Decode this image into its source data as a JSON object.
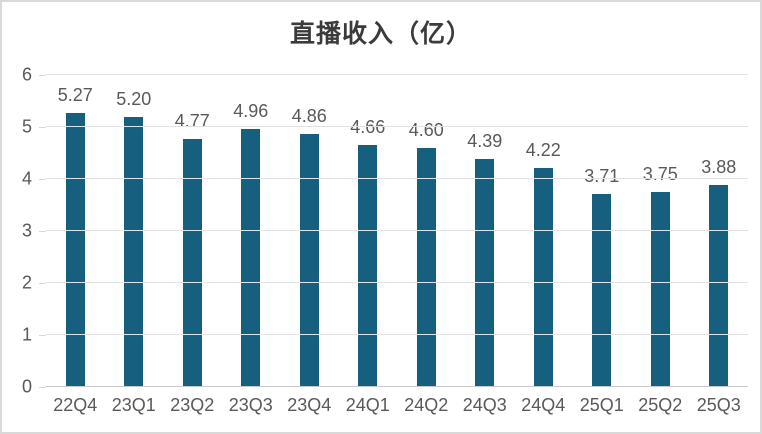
{
  "chart_data": {
    "type": "bar",
    "title": "直播收入（亿）",
    "categories": [
      "22Q4",
      "23Q1",
      "23Q2",
      "23Q3",
      "23Q4",
      "24Q1",
      "24Q2",
      "24Q3",
      "24Q4",
      "25Q1",
      "25Q2",
      "25Q3"
    ],
    "values": [
      5.27,
      5.2,
      4.77,
      4.96,
      4.86,
      4.66,
      4.6,
      4.39,
      4.22,
      3.71,
      3.75,
      3.88
    ],
    "data_labels": [
      "5.27",
      "5.20",
      "4.77",
      "4.96",
      "4.86",
      "4.66",
      "4.60",
      "4.39",
      "4.22",
      "3.71",
      "3.75",
      "3.88"
    ],
    "xlabel": "",
    "ylabel": "",
    "ylim": [
      0,
      6
    ],
    "y_ticks": [
      0,
      1,
      2,
      3,
      4,
      5,
      6
    ],
    "y_tick_labels": [
      "0",
      "1",
      "2",
      "3",
      "4",
      "5",
      "6"
    ],
    "grid": "horizontal",
    "legend_position": "none",
    "colors": {
      "bar": "#175f7e",
      "title_text": "#3b3b3b",
      "label_text": "#595959",
      "gridline": "#e2e2e2",
      "frame_border": "#d9d9d9",
      "background": "#ffffff"
    }
  }
}
